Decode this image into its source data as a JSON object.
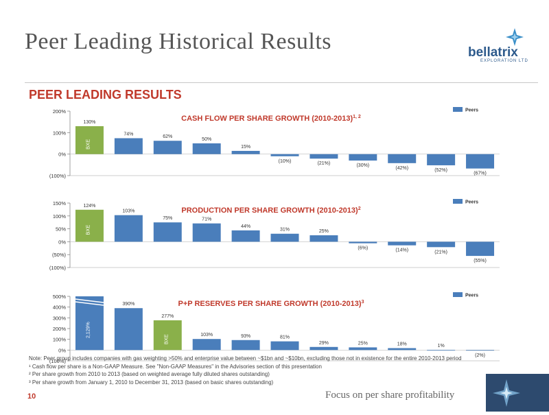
{
  "page": {
    "title": "Peer Leading Historical Results",
    "section_title": "PEER LEADING RESULTS",
    "logo": {
      "name": "bellatrix",
      "sub": "EXPLORATION LTD"
    },
    "page_number": "10",
    "tagline": "Focus on per share profitability",
    "notes": [
      "Note: Peer group includes companies with gas weighting >50% and enterprise value between ~$1bn and ~$10bn, excluding those not in existence for the entire 2010-2013 period",
      "¹ Cash flow per share is a Non-GAAP Measure. See \"Non-GAAP Measures\" in the Advisories section of this presentation",
      "² Per share growth from 2010 to 2013 (based on weighted average fully diluted shares outstanding)",
      "³ Per share growth from January 1, 2010 to December 31, 2013 (based on basic shares outstanding)"
    ]
  },
  "colors": {
    "peers": "#4a7ebb",
    "bxe": "#8ab04a",
    "title": "#c0392b",
    "grid": "#cccccc"
  },
  "chart_data": [
    {
      "type": "bar",
      "title": "CASH FLOW PER SHARE GROWTH (2010-2013)",
      "title_sup": "1, 2",
      "legend": [
        "Peers"
      ],
      "legend_position": "top-right",
      "y_ticks": [
        "200%",
        "100%",
        "0%",
        "(100%)"
      ],
      "y_tick_values": [
        200,
        100,
        0,
        -100
      ],
      "ylim": [
        -100,
        200
      ],
      "values": [
        130,
        74,
        62,
        50,
        15,
        -10,
        -21,
        -30,
        -42,
        -52,
        -67
      ],
      "value_labels": [
        "130%",
        "74%",
        "62%",
        "50%",
        "15%",
        "(10%)",
        "(21%)",
        "(30%)",
        "(42%)",
        "(52%)",
        "(67%)"
      ],
      "highlight_index": 0,
      "highlight_label": "BXE"
    },
    {
      "type": "bar",
      "title": "PRODUCTION PER SHARE GROWTH (2010-2013)",
      "title_sup": "2",
      "legend": [
        "Peers"
      ],
      "legend_position": "top-right",
      "y_ticks": [
        "150%",
        "100%",
        "50%",
        "0%",
        "(50%)",
        "(100%)"
      ],
      "y_tick_values": [
        150,
        100,
        50,
        0,
        -50,
        -100
      ],
      "ylim": [
        -100,
        150
      ],
      "values": [
        124,
        103,
        75,
        71,
        44,
        31,
        25,
        -6,
        -14,
        -21,
        -55
      ],
      "value_labels": [
        "124%",
        "103%",
        "75%",
        "71%",
        "44%",
        "31%",
        "25%",
        "(6%)",
        "(14%)",
        "(21%)",
        "(55%)"
      ],
      "highlight_index": 0,
      "highlight_label": "BXE"
    },
    {
      "type": "bar",
      "title": "P+P RESERVES PER SHARE GROWTH (2010-2013)",
      "title_sup": "3",
      "legend": [
        "Peers"
      ],
      "legend_position": "top-right",
      "y_ticks": [
        "500%",
        "400%",
        "300%",
        "200%",
        "100%",
        "0%",
        "(100%)"
      ],
      "y_tick_values": [
        500,
        400,
        300,
        200,
        100,
        0,
        -100
      ],
      "ylim": [
        -100,
        500
      ],
      "values": [
        2129,
        390,
        277,
        103,
        93,
        81,
        29,
        25,
        18,
        1,
        -2
      ],
      "value_labels": [
        "2,129%",
        "390%",
        "277%",
        "103%",
        "93%",
        "81%",
        "29%",
        "25%",
        "18%",
        "1%",
        "(2%)"
      ],
      "highlight_index": 2,
      "highlight_label": "BXE",
      "broken_bar_index": 0
    }
  ]
}
